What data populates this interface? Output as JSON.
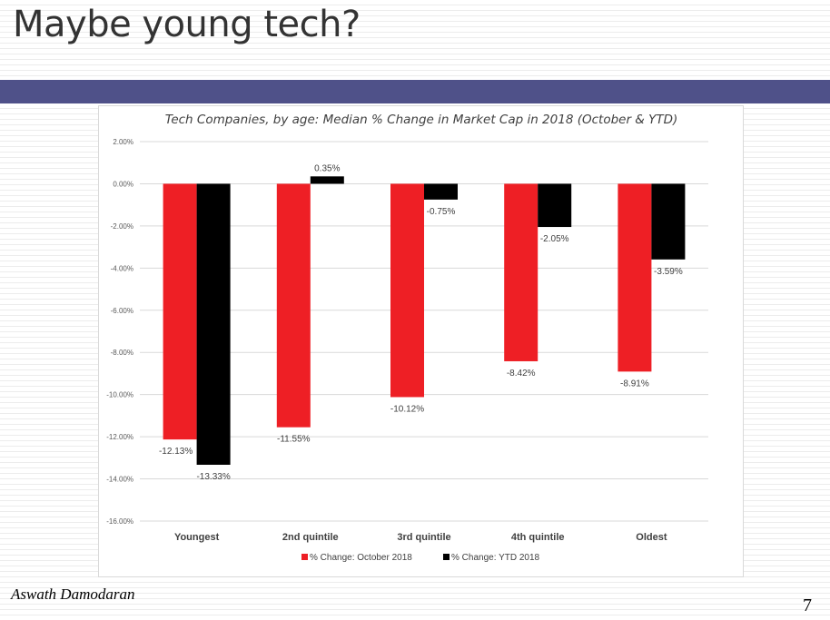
{
  "slide": {
    "title": "Maybe young tech?",
    "author": "Aswath Damodaran",
    "page_number": "7"
  },
  "colors": {
    "band": "#4f5189",
    "series_october": "#ee1f25",
    "series_ytd": "#000000"
  },
  "chart_data": {
    "type": "bar",
    "title": "Tech Companies, by age: Median % Change in Market Cap in 2018 (October & YTD)",
    "categories": [
      "Youngest",
      "2nd quintile",
      "3rd quintile",
      "4th quintile",
      "Oldest"
    ],
    "series": [
      {
        "name": "% Change: October 2018",
        "values": [
          -12.13,
          -11.55,
          -10.12,
          -8.42,
          -8.91
        ],
        "labels": [
          "-12.13%",
          "-11.55%",
          "-10.12%",
          "-8.42%",
          "-8.91%"
        ]
      },
      {
        "name": "% Change: YTD 2018",
        "values": [
          -13.33,
          0.35,
          -0.75,
          -2.05,
          -3.59
        ],
        "labels": [
          "-13.33%",
          "0.35%",
          "-0.75%",
          "-2.05%",
          "-3.59%"
        ]
      }
    ],
    "ylim": [
      -16,
      2
    ],
    "yticks": [
      2,
      0,
      -2,
      -4,
      -6,
      -8,
      -10,
      -12,
      -14,
      -16
    ],
    "ytick_labels": [
      "2.00%",
      "0.00%",
      "-2.00%",
      "-4.00%",
      "-6.00%",
      "-8.00%",
      "-10.00%",
      "-12.00%",
      "-14.00%",
      "-16.00%"
    ],
    "xlabel": "",
    "ylabel": "",
    "grid": true,
    "legend": "bottom"
  }
}
